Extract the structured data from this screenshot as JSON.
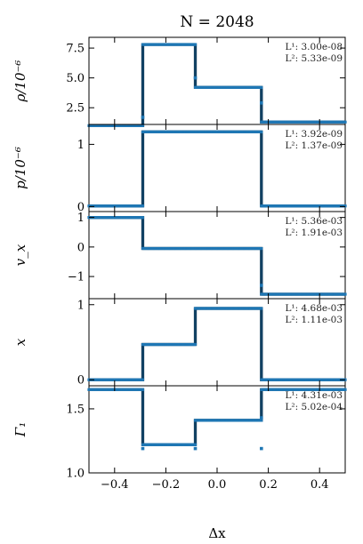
{
  "chart_data": {
    "type": "line",
    "title": "N = 2048",
    "xlabel": "Δx",
    "xlim": [
      -0.5,
      0.5
    ],
    "xticks": [
      -0.4,
      -0.2,
      0.0,
      0.2,
      0.4
    ],
    "xtick_labels": [
      "−0.4",
      "−0.2",
      "0.0",
      "0.2",
      "0.4"
    ],
    "grid": false,
    "panels": [
      {
        "ylabel": "ρ/10⁻⁶",
        "ylim": [
          1.1,
          8.4
        ],
        "yticks": [
          2.5,
          5.0,
          7.5
        ],
        "ytick_labels": [
          "2.5",
          "5.0",
          "7.5"
        ],
        "norms": [
          "L¹: 3.00e-08",
          "L²: 5.33e-09"
        ],
        "segments": [
          [
            -0.5,
            -0.29,
            1.0
          ],
          [
            -0.29,
            -0.085,
            7.8
          ],
          [
            -0.085,
            0.173,
            4.2
          ],
          [
            0.173,
            0.5,
            1.3
          ]
        ],
        "outliers": [
          [
            -0.29,
            1.7
          ],
          [
            -0.085,
            5.0
          ],
          [
            0.173,
            2.9
          ]
        ]
      },
      {
        "ylabel": "p/10⁻⁶",
        "ylim": [
          -0.08,
          1.32
        ],
        "yticks": [
          0,
          1
        ],
        "ytick_labels": [
          "0",
          "1"
        ],
        "norms": [
          "L¹: 3.92e-09",
          "L²: 1.37e-09"
        ],
        "segments": [
          [
            -0.5,
            -0.29,
            0.01
          ],
          [
            -0.29,
            0.173,
            1.2
          ],
          [
            0.173,
            0.5,
            0.01
          ]
        ],
        "outliers": []
      },
      {
        "ylabel": "v_x",
        "ylim": [
          -1.75,
          1.2
        ],
        "yticks": [
          -1,
          0,
          1
        ],
        "ytick_labels": [
          "−1",
          "0",
          "1"
        ],
        "norms": [
          "L¹: 5.36e-03",
          "L²: 1.91e-03"
        ],
        "segments": [
          [
            -0.5,
            -0.29,
            1.0
          ],
          [
            -0.29,
            0.173,
            -0.05
          ],
          [
            0.173,
            0.5,
            -1.6
          ]
        ],
        "outliers": [
          [
            0.173,
            -1.3
          ]
        ]
      },
      {
        "ylabel": "x",
        "ylim": [
          -0.08,
          1.08
        ],
        "yticks": [
          0,
          1
        ],
        "ytick_labels": [
          "0",
          "1"
        ],
        "norms": [
          "L¹: 4.68e-03",
          "L²: 1.11e-03"
        ],
        "segments": [
          [
            -0.5,
            -0.29,
            0.0
          ],
          [
            -0.29,
            -0.085,
            0.47
          ],
          [
            -0.085,
            0.173,
            0.95
          ],
          [
            0.173,
            0.5,
            0.0
          ]
        ],
        "outliers": []
      },
      {
        "ylabel": "Γ₁",
        "ylim": [
          1.0,
          1.68
        ],
        "yticks": [
          1.0,
          1.5
        ],
        "ytick_labels": [
          "1.0",
          "1.5"
        ],
        "norms": [
          "L¹: 4.31e-03",
          "L²: 5.02e-04"
        ],
        "segments": [
          [
            -0.5,
            -0.29,
            1.65
          ],
          [
            -0.29,
            -0.085,
            1.22
          ],
          [
            -0.085,
            0.173,
            1.41
          ],
          [
            0.173,
            0.5,
            1.65
          ]
        ],
        "outliers": [
          [
            -0.29,
            1.19
          ],
          [
            -0.085,
            1.19
          ],
          [
            0.173,
            1.19
          ],
          [
            0.173,
            1.43
          ]
        ]
      }
    ],
    "series_colors": {
      "numerical": "#1f77b4",
      "analytic": "#000000"
    }
  }
}
